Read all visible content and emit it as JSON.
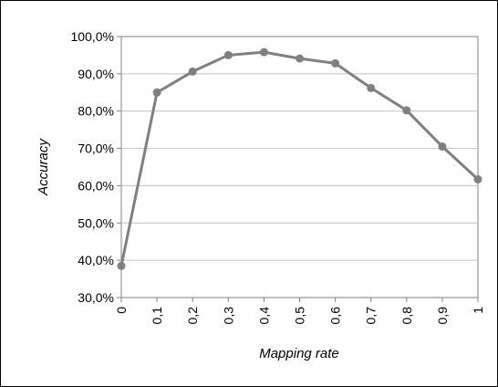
{
  "chart_data": {
    "type": "line",
    "title": "",
    "xlabel": "Mapping rate",
    "ylabel": "Accuracy",
    "x": [
      0,
      0.1,
      0.2,
      0.3,
      0.4,
      0.5,
      0.6,
      0.7,
      0.8,
      0.9,
      1
    ],
    "x_tick_labels": [
      "0",
      "0,1",
      "0,2",
      "0,3",
      "0,4",
      "0,5",
      "0,6",
      "0,7",
      "0,8",
      "0,9",
      "1"
    ],
    "y_tick_labels": [
      "30,0%",
      "40,0%",
      "50,0%",
      "60,0%",
      "70,0%",
      "80,0%",
      "90,0%",
      "100,0%"
    ],
    "ylim": [
      30,
      100
    ],
    "y_unit": "%",
    "grid": true,
    "legend": "none",
    "series": [
      {
        "values": [
          38.5,
          85.0,
          90.6,
          95.0,
          95.8,
          94.1,
          92.8,
          86.2,
          80.2,
          70.5,
          61.7
        ],
        "color": "#808080"
      }
    ]
  }
}
